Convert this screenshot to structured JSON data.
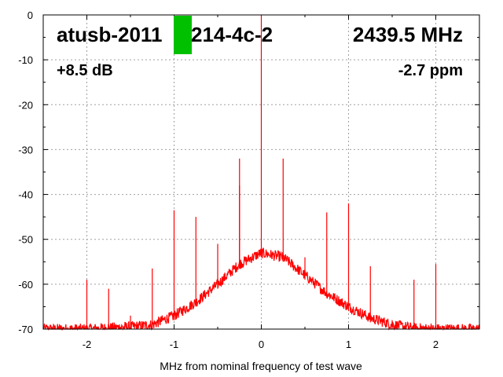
{
  "header": {
    "device_id": "atusb-2011",
    "device_id_tail": "214-4c-2",
    "frequency": "2439.5 MHz",
    "gain": "+8.5 dB",
    "offset": "-2.7 ppm",
    "status_color": "#00c000"
  },
  "chart_data": {
    "type": "line",
    "title": "",
    "xlabel": "MHz from nominal frequency of test wave",
    "ylabel": "",
    "xlim": [
      -2.5,
      2.5
    ],
    "ylim": [
      -70,
      0
    ],
    "grid": true,
    "series_color": "#ff0000",
    "xticks": [
      -2,
      -1,
      0,
      1,
      2
    ],
    "xtick_labels": [
      "-2",
      "-1",
      "0",
      "1",
      "2"
    ],
    "yticks": [
      0,
      -10,
      -20,
      -30,
      -40,
      -50,
      -60,
      -70
    ],
    "ytick_labels": [
      "0",
      "-10",
      "-20",
      "-30",
      "-40",
      "-50",
      "-60",
      "-70"
    ],
    "noise_floor": {
      "x": [
        -2.5,
        -2.0,
        -1.5,
        -1.25,
        -1.0,
        -0.75,
        -0.5,
        -0.25,
        0.0,
        0.25,
        0.5,
        0.75,
        1.0,
        1.25,
        1.5,
        1.75,
        2.0,
        2.25,
        2.5
      ],
      "y": [
        -70,
        -70,
        -69.5,
        -69,
        -67,
        -64,
        -60,
        -55.5,
        -53,
        -54,
        -58,
        -62,
        -65,
        -67.5,
        -69,
        -69.8,
        -70,
        -70,
        -70
      ]
    },
    "spurs": [
      {
        "x": -2.0,
        "y": -59
      },
      {
        "x": -1.75,
        "y": -61
      },
      {
        "x": -1.5,
        "y": -67
      },
      {
        "x": -1.25,
        "y": -56.5
      },
      {
        "x": -1.0,
        "y": -43.5
      },
      {
        "x": -0.75,
        "y": -45
      },
      {
        "x": -0.5,
        "y": -51
      },
      {
        "x": -0.25,
        "y": -32
      },
      {
        "x": -0.25,
        "y": -38
      },
      {
        "x": 0.0,
        "y": 0
      },
      {
        "x": 0.25,
        "y": -32
      },
      {
        "x": 0.5,
        "y": -54
      },
      {
        "x": 0.75,
        "y": -44
      },
      {
        "x": 1.0,
        "y": -42
      },
      {
        "x": 1.25,
        "y": -56
      },
      {
        "x": 1.5,
        "y": -68
      },
      {
        "x": 1.75,
        "y": -59
      },
      {
        "x": 2.0,
        "y": -55.5
      },
      {
        "x": 2.25,
        "y": -69
      },
      {
        "x": 2.5,
        "y": -69
      }
    ]
  }
}
